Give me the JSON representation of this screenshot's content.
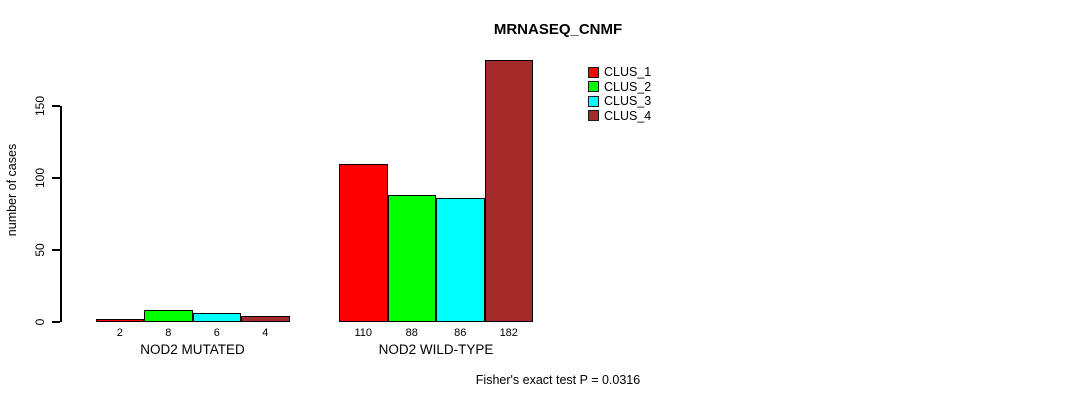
{
  "chart_data": {
    "type": "bar",
    "title": "MRNASEQ_CNMF",
    "ylabel": "number of cases",
    "ylim": [
      0,
      150
    ],
    "yticks": [
      0,
      50,
      100,
      150
    ],
    "categories": [
      "NOD2 MUTATED",
      "NOD2 WILD-TYPE"
    ],
    "series": [
      {
        "name": "CLUS_1",
        "color": "#ff0000",
        "values": [
          2,
          110
        ]
      },
      {
        "name": "CLUS_2",
        "color": "#00ff00",
        "values": [
          8,
          88
        ]
      },
      {
        "name": "CLUS_3",
        "color": "#00ffff",
        "values": [
          6,
          86
        ]
      },
      {
        "name": "CLUS_4",
        "color": "#a52a2a",
        "values": [
          4,
          182
        ]
      }
    ],
    "bar_value_labels": [
      [
        "2",
        "8",
        "6",
        "4"
      ],
      [
        "110",
        "88",
        "86",
        "182"
      ]
    ],
    "annotation": "Fisher's exact test P = 0.0316",
    "legend_position": "top-right",
    "grid": false,
    "background": "#ffffff"
  }
}
